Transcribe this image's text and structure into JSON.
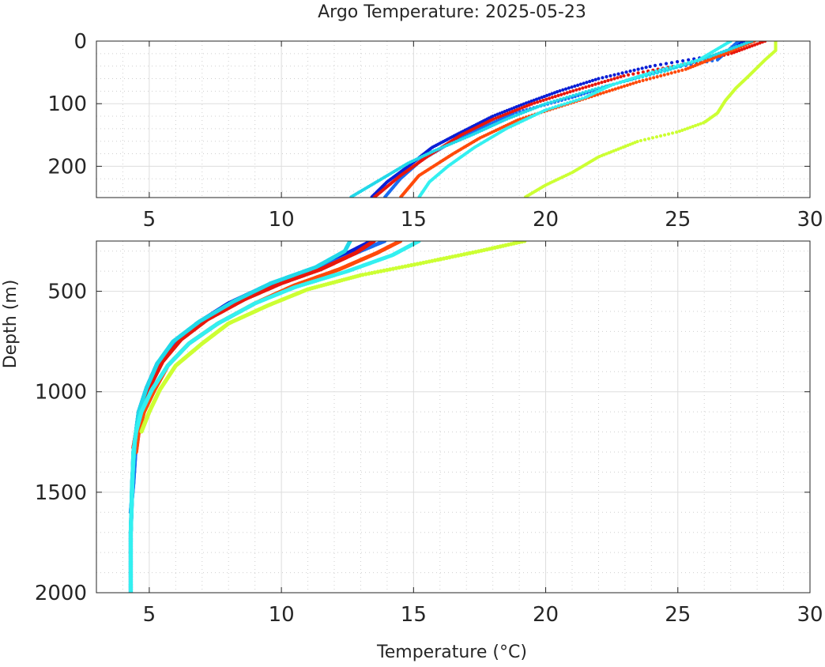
{
  "chart_data": {
    "type": "scatter",
    "title": "Argo Temperature: 2025-05-23",
    "xlabel": "Temperature (°C)",
    "ylabel": "Depth (m)",
    "grid": true,
    "minor_grid": true,
    "y_inverted": true,
    "panels": [
      {
        "id": "upper",
        "xlim": [
          3,
          30
        ],
        "ylim": [
          0,
          250
        ],
        "x_ticks": [
          5,
          10,
          15,
          20,
          25,
          30
        ],
        "y_ticks": [
          0,
          100,
          200
        ]
      },
      {
        "id": "lower",
        "xlim": [
          3,
          30
        ],
        "ylim": [
          250,
          2000
        ],
        "x_ticks": [
          5,
          10,
          15,
          20,
          25,
          30
        ],
        "y_ticks": [
          500,
          1000,
          1500,
          2000
        ]
      }
    ],
    "series": [
      {
        "color": "#0a1fd6",
        "profile": [
          [
            27.5,
            0
          ],
          [
            26.8,
            20
          ],
          [
            24.0,
            40
          ],
          [
            22.0,
            60
          ],
          [
            20.5,
            80
          ],
          [
            19.2,
            100
          ],
          [
            18.0,
            120
          ],
          [
            16.6,
            150
          ],
          [
            15.7,
            170
          ],
          [
            14.8,
            200
          ],
          [
            14.0,
            225
          ],
          [
            13.4,
            250
          ],
          [
            12.2,
            330
          ],
          [
            11.0,
            400
          ],
          [
            9.3,
            480
          ],
          [
            8.0,
            560
          ],
          [
            6.8,
            660
          ],
          [
            5.9,
            760
          ],
          [
            5.3,
            860
          ],
          [
            4.9,
            980
          ],
          [
            4.6,
            1100
          ],
          [
            4.5,
            1200
          ],
          [
            4.4,
            1300
          ],
          [
            4.35,
            1500
          ],
          [
            4.3,
            1700
          ],
          [
            4.3,
            2000
          ]
        ]
      },
      {
        "color": "#1a6cf2",
        "profile": [
          [
            27.3,
            0
          ],
          [
            26.5,
            30
          ],
          [
            24.5,
            45
          ],
          [
            22.5,
            70
          ],
          [
            21.0,
            90
          ],
          [
            18.8,
            115
          ],
          [
            17.5,
            140
          ],
          [
            16.3,
            165
          ],
          [
            15.3,
            190
          ],
          [
            14.5,
            220
          ],
          [
            13.9,
            250
          ],
          [
            12.8,
            310
          ],
          [
            11.5,
            380
          ],
          [
            9.8,
            460
          ],
          [
            8.3,
            550
          ],
          [
            7.0,
            650
          ],
          [
            6.0,
            750
          ],
          [
            5.4,
            850
          ],
          [
            5.0,
            970
          ],
          [
            4.7,
            1100
          ],
          [
            4.5,
            1250
          ],
          [
            4.4,
            1450
          ],
          [
            4.3,
            1600
          ]
        ]
      },
      {
        "color": "#e8170c",
        "profile": [
          [
            28.3,
            0
          ],
          [
            27.0,
            20
          ],
          [
            25.5,
            35
          ],
          [
            23.0,
            55
          ],
          [
            21.0,
            80
          ],
          [
            19.5,
            100
          ],
          [
            18.0,
            125
          ],
          [
            16.8,
            150
          ],
          [
            15.5,
            185
          ],
          [
            14.5,
            215
          ],
          [
            13.5,
            250
          ],
          [
            12.8,
            310
          ],
          [
            11.5,
            390
          ],
          [
            10.0,
            460
          ],
          [
            8.6,
            540
          ],
          [
            7.2,
            640
          ],
          [
            6.2,
            740
          ],
          [
            5.5,
            850
          ],
          [
            5.0,
            980
          ],
          [
            4.7,
            1100
          ],
          [
            4.5,
            1200
          ],
          [
            4.4,
            1280
          ]
        ]
      },
      {
        "color": "#ff4a0a",
        "profile": [
          [
            27.9,
            0
          ],
          [
            26.2,
            30
          ],
          [
            25.3,
            45
          ],
          [
            23.5,
            65
          ],
          [
            22.0,
            85
          ],
          [
            20.5,
            105
          ],
          [
            19.0,
            125
          ],
          [
            17.5,
            155
          ],
          [
            16.5,
            180
          ],
          [
            15.2,
            215
          ],
          [
            14.5,
            250
          ],
          [
            13.6,
            310
          ],
          [
            12.2,
            390
          ],
          [
            10.5,
            470
          ],
          [
            9.0,
            560
          ],
          [
            7.6,
            660
          ],
          [
            6.5,
            760
          ],
          [
            5.7,
            870
          ],
          [
            5.2,
            990
          ],
          [
            4.8,
            1100
          ],
          [
            4.6,
            1200
          ],
          [
            4.5,
            1300
          ]
        ]
      },
      {
        "color": "#22d8e8",
        "profile": [
          [
            27.8,
            0
          ],
          [
            26.0,
            28
          ],
          [
            24.5,
            48
          ],
          [
            22.0,
            75
          ],
          [
            20.0,
            100
          ],
          [
            18.5,
            125
          ],
          [
            17.2,
            150
          ],
          [
            15.8,
            175
          ],
          [
            14.8,
            195
          ],
          [
            14.0,
            215
          ],
          [
            13.2,
            235
          ],
          [
            12.6,
            250
          ],
          [
            12.4,
            300
          ],
          [
            11.3,
            380
          ],
          [
            9.6,
            460
          ],
          [
            8.2,
            550
          ],
          [
            6.9,
            650
          ],
          [
            5.9,
            750
          ],
          [
            5.3,
            860
          ],
          [
            4.9,
            980
          ],
          [
            4.6,
            1100
          ],
          [
            4.45,
            1250
          ],
          [
            4.35,
            1450
          ],
          [
            4.3,
            1700
          ],
          [
            4.3,
            2000
          ]
        ]
      },
      {
        "color": "#33f0f0",
        "profile": [
          [
            27.0,
            0
          ],
          [
            25.8,
            30
          ],
          [
            24.0,
            50
          ],
          [
            22.5,
            70
          ],
          [
            21.5,
            90
          ],
          [
            20.0,
            110
          ],
          [
            18.5,
            140
          ],
          [
            17.3,
            170
          ],
          [
            16.3,
            200
          ],
          [
            15.6,
            225
          ],
          [
            15.2,
            250
          ],
          [
            14.2,
            320
          ],
          [
            12.5,
            400
          ],
          [
            10.5,
            480
          ],
          [
            9.0,
            560
          ],
          [
            7.6,
            660
          ],
          [
            6.5,
            760
          ],
          [
            5.7,
            870
          ],
          [
            5.1,
            990
          ],
          [
            4.7,
            1100
          ],
          [
            4.5,
            1200
          ],
          [
            4.4,
            1300
          ],
          [
            4.35,
            1500
          ],
          [
            4.3,
            1700
          ],
          [
            4.3,
            1990
          ]
        ]
      },
      {
        "color": "#ccff33",
        "profile": [
          [
            28.7,
            0
          ],
          [
            28.7,
            15
          ],
          [
            28.3,
            30
          ],
          [
            27.7,
            55
          ],
          [
            27.2,
            75
          ],
          [
            26.8,
            95
          ],
          [
            26.5,
            115
          ],
          [
            26.0,
            130
          ],
          [
            25.0,
            145
          ],
          [
            23.5,
            160
          ],
          [
            22.0,
            185
          ],
          [
            21.0,
            210
          ],
          [
            20.0,
            230
          ],
          [
            19.2,
            250
          ],
          [
            17.5,
            300
          ],
          [
            15.3,
            360
          ],
          [
            13.0,
            420
          ],
          [
            11.0,
            490
          ],
          [
            9.5,
            570
          ],
          [
            8.0,
            660
          ],
          [
            7.0,
            760
          ],
          [
            6.0,
            870
          ],
          [
            5.4,
            990
          ],
          [
            5.0,
            1100
          ],
          [
            4.7,
            1200
          ]
        ]
      }
    ]
  }
}
